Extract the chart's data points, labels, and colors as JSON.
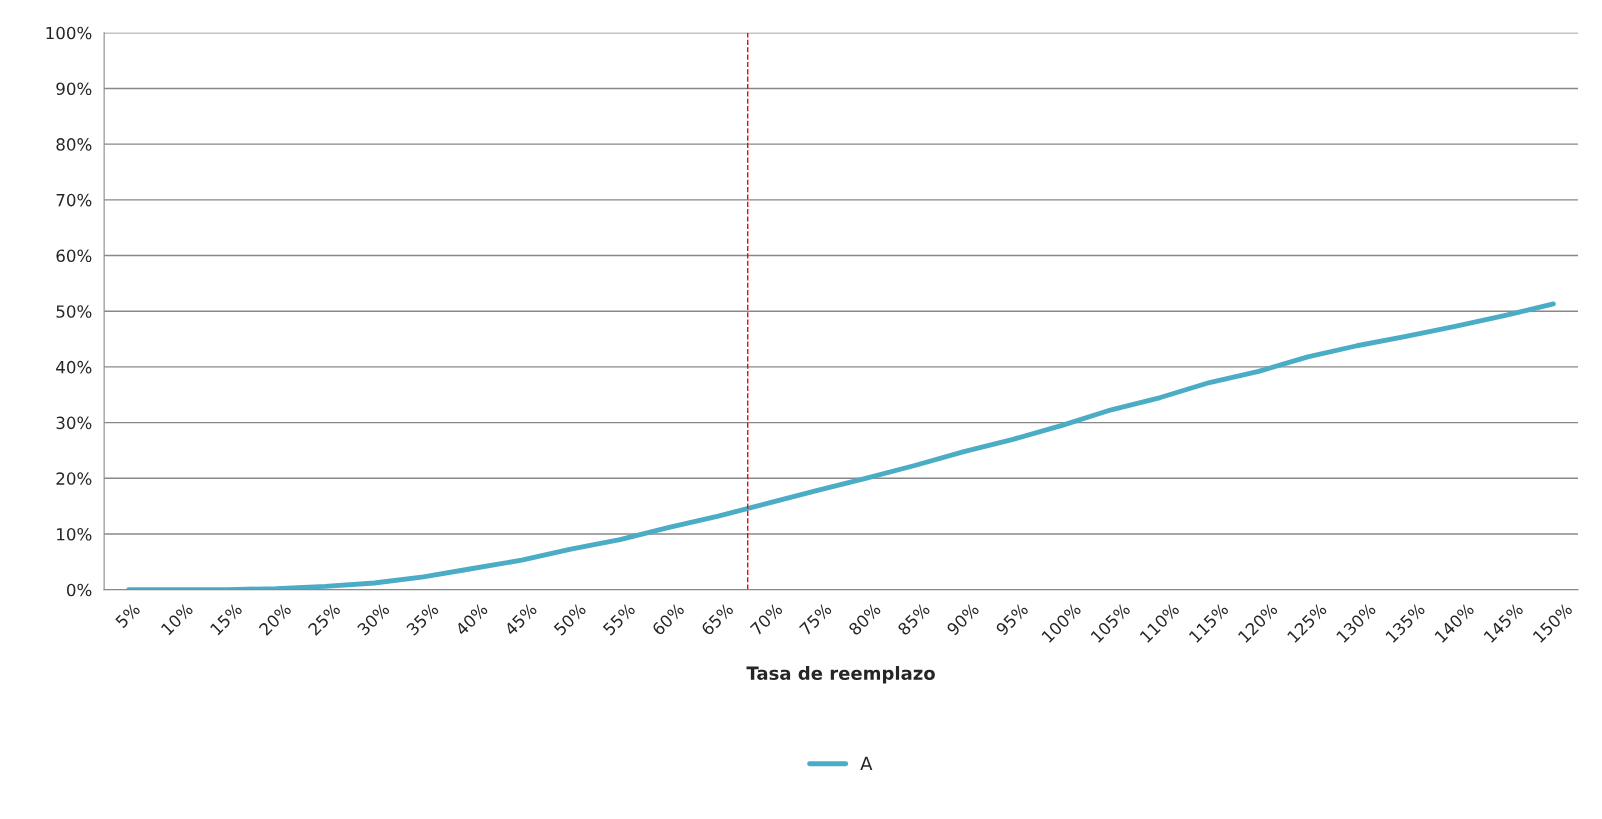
{
  "chart_data": {
    "type": "line",
    "xlabel": "Tasa de reemplazo",
    "x": [
      5,
      10,
      15,
      20,
      25,
      30,
      35,
      40,
      45,
      50,
      55,
      60,
      65,
      70,
      75,
      80,
      85,
      90,
      95,
      100,
      105,
      110,
      115,
      120,
      125,
      130,
      135,
      140,
      145,
      150
    ],
    "series": [
      {
        "name": "A",
        "color": "#4bacc6",
        "values": [
          0,
          0,
          0,
          0.2,
          0.6,
          1.2,
          2.3,
          3.8,
          5.3,
          7.3,
          9,
          11.2,
          13.2,
          15.5,
          17.8,
          20,
          22.3,
          24.8,
          27,
          29.5,
          32.3,
          34.5,
          37.2,
          39.2,
          41.8,
          43.8,
          45.5,
          47.3,
          49.2,
          51.3
        ]
      }
    ],
    "xlim": [
      2.5,
      152.5
    ],
    "xticks": [
      {
        "value": 5,
        "label": "5%"
      },
      {
        "value": 10,
        "label": "10%"
      },
      {
        "value": 15,
        "label": "15%"
      },
      {
        "value": 20,
        "label": "20%"
      },
      {
        "value": 25,
        "label": "25%"
      },
      {
        "value": 30,
        "label": "30%"
      },
      {
        "value": 35,
        "label": "35%"
      },
      {
        "value": 40,
        "label": "40%"
      },
      {
        "value": 45,
        "label": "45%"
      },
      {
        "value": 50,
        "label": "50%"
      },
      {
        "value": 55,
        "label": "55%"
      },
      {
        "value": 60,
        "label": "60%"
      },
      {
        "value": 65,
        "label": "65%"
      },
      {
        "value": 70,
        "label": "70%"
      },
      {
        "value": 75,
        "label": "75%"
      },
      {
        "value": 80,
        "label": "80%"
      },
      {
        "value": 85,
        "label": "85%"
      },
      {
        "value": 90,
        "label": "90%"
      },
      {
        "value": 95,
        "label": "95%"
      },
      {
        "value": 100,
        "label": "100%"
      },
      {
        "value": 105,
        "label": "105%"
      },
      {
        "value": 110,
        "label": "110%"
      },
      {
        "value": 115,
        "label": "115%"
      },
      {
        "value": 120,
        "label": "120%"
      },
      {
        "value": 125,
        "label": "125%"
      },
      {
        "value": 130,
        "label": "130%"
      },
      {
        "value": 135,
        "label": "135%"
      },
      {
        "value": 140,
        "label": "140%"
      },
      {
        "value": 145,
        "label": "145%"
      },
      {
        "value": 150,
        "label": "150%"
      }
    ],
    "ylim": [
      0,
      100
    ],
    "yticks": [
      {
        "value": 0,
        "label": "0%"
      },
      {
        "value": 10,
        "label": "10%"
      },
      {
        "value": 20,
        "label": "20%"
      },
      {
        "value": 30,
        "label": "30%"
      },
      {
        "value": 40,
        "label": "40%"
      },
      {
        "value": 50,
        "label": "50%"
      },
      {
        "value": 60,
        "label": "60%"
      },
      {
        "value": 70,
        "label": "70%"
      },
      {
        "value": 80,
        "label": "80%"
      },
      {
        "value": 90,
        "label": "90%"
      },
      {
        "value": 100,
        "label": "100%"
      }
    ],
    "ref_lines": [
      {
        "axis": "x",
        "value": 68,
        "color": "#ff0000",
        "line_style": "dashed"
      }
    ],
    "grid": "y",
    "legend": "bottom",
    "marker": "none",
    "line_style": "solid"
  }
}
